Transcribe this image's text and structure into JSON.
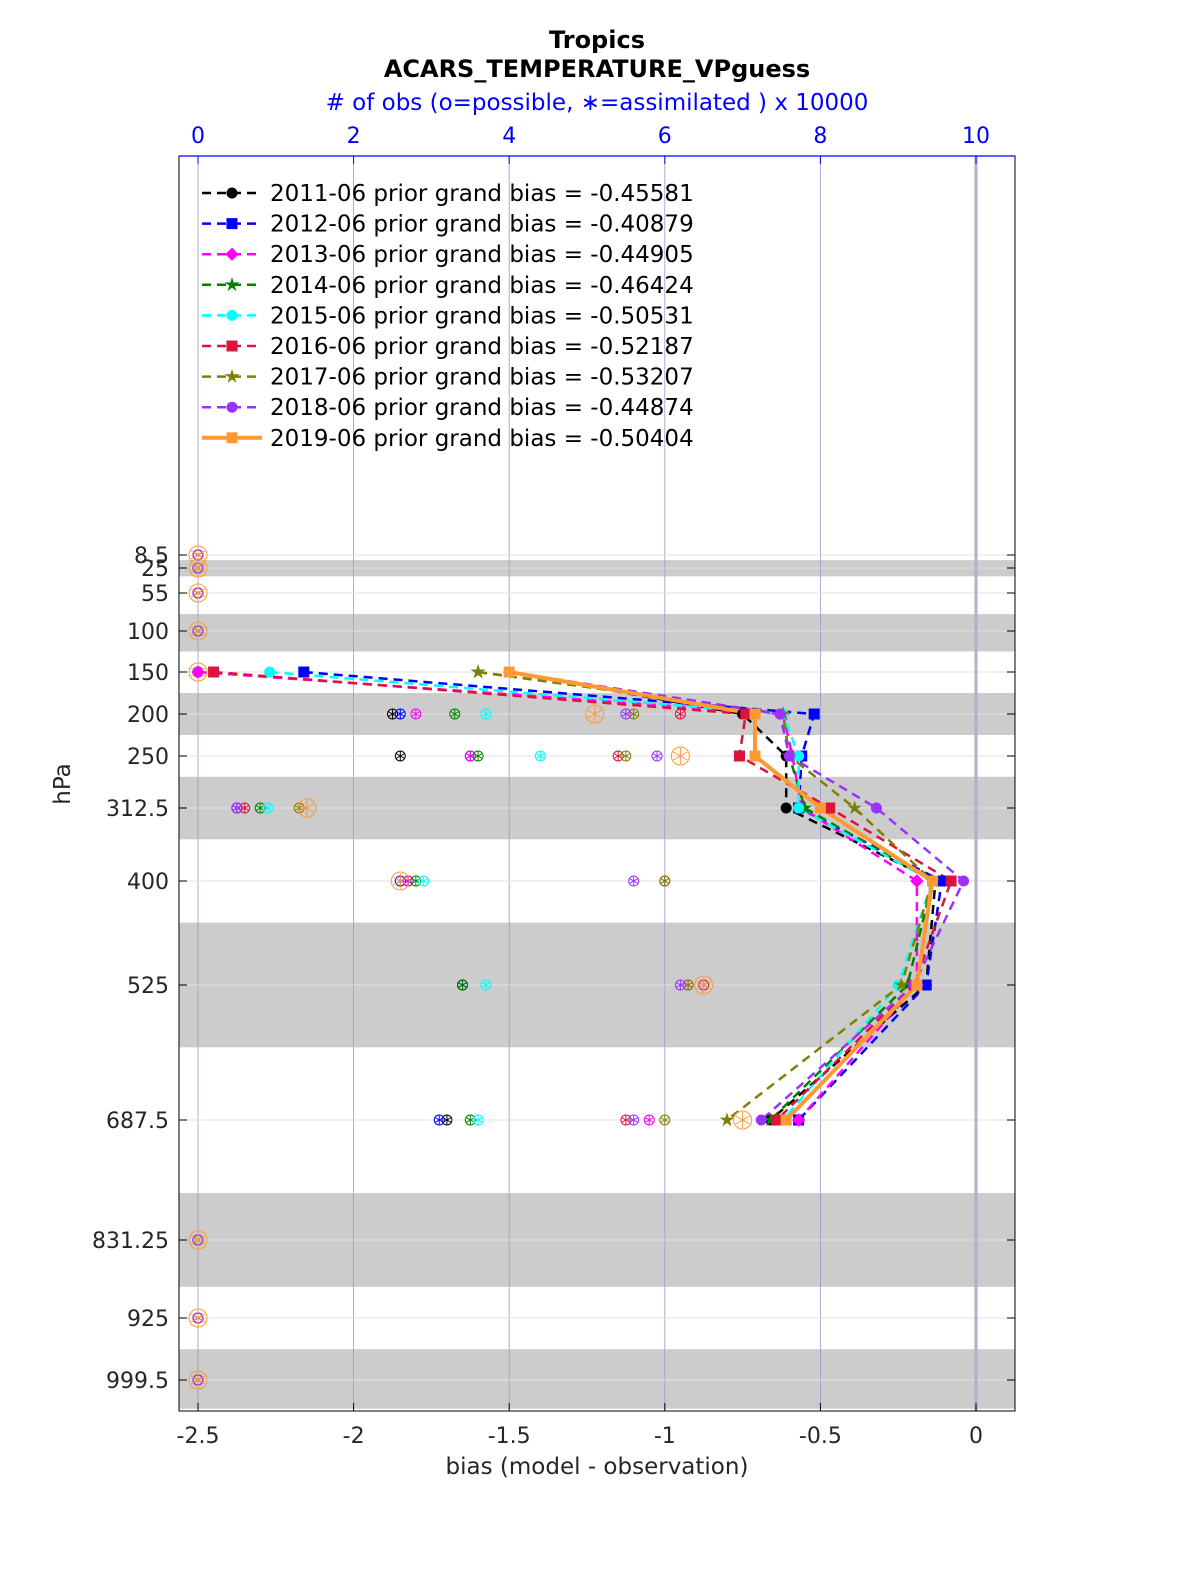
{
  "chart_data": {
    "type": "line",
    "title": "Tropics",
    "subtitle": "ACARS_TEMPERATURE_VPguess",
    "top_axis_label": "# of obs (o=possible, ∗=assimilated ) x 10000",
    "xlabel": "bias (model - observation)",
    "ylabel": "hPa",
    "xlim": [
      -2.5,
      0.12
    ],
    "x_ticks": [
      "-2.5",
      "-2",
      "-1.5",
      "-1",
      "-0.5",
      "0"
    ],
    "x_tick_values": [
      -2.5,
      -2,
      -1.5,
      -1,
      -0.5,
      0
    ],
    "top_xlim": [
      0,
      10.5
    ],
    "top_ticks": [
      "0",
      "2",
      "4",
      "6",
      "8",
      "10"
    ],
    "top_tick_values": [
      0,
      2,
      4,
      6,
      8,
      10
    ],
    "y_ticks": [
      "8.5",
      "25",
      "55",
      "100",
      "150",
      "200",
      "250",
      "312.5",
      "400",
      "525",
      "687.5",
      "831.25",
      "925",
      "999.5"
    ],
    "y_tick_values": [
      8.5,
      25,
      55,
      100,
      150,
      200,
      250,
      312.5,
      400,
      525,
      687.5,
      831.25,
      925,
      999.5
    ],
    "y_reversed": true,
    "shaded_bands": [
      [
        15,
        35
      ],
      [
        80,
        125
      ],
      [
        175,
        225
      ],
      [
        275,
        350
      ],
      [
        450,
        600
      ],
      [
        775,
        887.5
      ],
      [
        962.5,
        1037
      ]
    ],
    "legend_position": "top-left",
    "series": [
      {
        "name": "2011-06 prior grand bias = -0.45581",
        "color": "#000000",
        "marker": "circle",
        "style": "dashed",
        "pressure": [
          150,
          200,
          250,
          312.5,
          400,
          525,
          687.5
        ],
        "values": [
          -1.5,
          -0.75,
          -0.61,
          -0.61,
          -0.13,
          -0.16,
          -0.66
        ]
      },
      {
        "name": "2012-06 prior grand bias = -0.40879",
        "color": "#0000ff",
        "marker": "square",
        "style": "dashed",
        "pressure": [
          150,
          200,
          250,
          312.5,
          400,
          525,
          687.5
        ],
        "values": [
          -2.16,
          -0.52,
          -0.56,
          -0.57,
          -0.11,
          -0.16,
          -0.57
        ]
      },
      {
        "name": "2013-06 prior grand bias = -0.44905",
        "color": "#ff00ff",
        "marker": "diamond",
        "style": "dashed",
        "pressure": [
          150,
          200,
          250,
          312.5,
          400,
          525,
          687.5
        ],
        "values": [
          -2.5,
          -0.62,
          -0.59,
          -0.56,
          -0.19,
          -0.19,
          -0.57
        ]
      },
      {
        "name": "2014-06 prior grand bias = -0.46424",
        "color": "#008000",
        "marker": "star",
        "style": "dashed",
        "pressure": [
          150,
          200,
          250,
          312.5,
          400,
          525,
          687.5
        ],
        "values": [
          -1.6,
          -0.62,
          -0.6,
          -0.55,
          -0.14,
          -0.22,
          -0.66
        ]
      },
      {
        "name": "2015-06 prior grand bias = -0.50531",
        "color": "#00ffff",
        "marker": "hexagon",
        "style": "dashed",
        "pressure": [
          150,
          200,
          250,
          312.5,
          400,
          525,
          687.5
        ],
        "values": [
          -2.27,
          -0.62,
          -0.57,
          -0.57,
          -0.14,
          -0.25,
          -0.62
        ]
      },
      {
        "name": "2016-06 prior grand bias = -0.52187",
        "color": "#dc143c",
        "marker": "square",
        "style": "dashed",
        "pressure": [
          150,
          200,
          250,
          312.5,
          400,
          525,
          687.5
        ],
        "values": [
          -2.45,
          -0.74,
          -0.76,
          -0.47,
          -0.08,
          -0.2,
          -0.64
        ]
      },
      {
        "name": "2017-06 prior grand bias = -0.53207",
        "color": "#808000",
        "marker": "star",
        "style": "dashed",
        "pressure": [
          150,
          200,
          250,
          312.5,
          400,
          525,
          687.5
        ],
        "values": [
          -1.6,
          -0.62,
          -0.6,
          -0.39,
          -0.14,
          -0.24,
          -0.8
        ]
      },
      {
        "name": "2018-06 prior grand bias = -0.44874",
        "color": "#9b30ff",
        "marker": "circle",
        "style": "dashed",
        "pressure": [
          150,
          200,
          250,
          312.5,
          400,
          525,
          687.5
        ],
        "values": [
          -1.5,
          -0.63,
          -0.6,
          -0.32,
          -0.04,
          -0.2,
          -0.69
        ]
      },
      {
        "name": "2019-06 prior grand bias = -0.50404",
        "color": "#ff9933",
        "marker": "square",
        "style": "solid",
        "pressure": [
          150,
          200,
          250,
          312.5,
          400,
          525,
          687.5
        ],
        "values": [
          -1.5,
          -0.71,
          -0.71,
          -0.5,
          -0.14,
          -0.19,
          -0.61
        ]
      }
    ],
    "obs_counts": {
      "pressure": [
        8.5,
        25,
        55,
        100,
        150,
        200,
        250,
        312.5,
        400,
        525,
        687.5,
        831.25,
        925,
        999.5
      ],
      "per_year": [
        {
          "color": "#000000",
          "counts": [
            0,
            0,
            0,
            0,
            0,
            2.5,
            2.6,
            0.5,
            2.7,
            3.4,
            3.2,
            0,
            0,
            0
          ]
        },
        {
          "color": "#0000ff",
          "counts": [
            0,
            0,
            0,
            0,
            0,
            2.6,
            3.5,
            0.5,
            2.6,
            3.4,
            3.1,
            0,
            0,
            0
          ]
        },
        {
          "color": "#ff00ff",
          "counts": [
            0,
            0,
            0,
            0,
            0,
            2.8,
            3.5,
            0.5,
            2.7,
            6.3,
            5.8,
            0,
            0,
            0
          ]
        },
        {
          "color": "#008000",
          "counts": [
            0,
            0,
            0,
            0,
            0,
            3.3,
            3.6,
            0.8,
            2.8,
            3.4,
            3.5,
            0,
            0,
            0
          ]
        },
        {
          "color": "#00ffff",
          "counts": [
            0,
            0,
            0,
            0,
            0,
            3.7,
            4.4,
            0.9,
            2.9,
            3.7,
            3.6,
            0,
            0,
            0
          ]
        },
        {
          "color": "#dc143c",
          "counts": [
            0,
            0,
            0,
            0,
            0,
            6.2,
            5.4,
            0.6,
            6.0,
            6.5,
            5.5,
            0,
            0,
            0
          ]
        },
        {
          "color": "#808000",
          "counts": [
            0,
            0,
            0,
            0,
            0,
            5.6,
            5.5,
            1.3,
            6.0,
            6.3,
            6.0,
            0,
            0,
            0
          ]
        },
        {
          "color": "#9b30ff",
          "counts": [
            0,
            0,
            0,
            0,
            0,
            5.5,
            5.9,
            0.5,
            5.6,
            6.2,
            5.6,
            0,
            0,
            0
          ]
        },
        {
          "color": "#ff9933",
          "counts": [
            0,
            0,
            0,
            0,
            0,
            5.1,
            6.2,
            1.4,
            2.6,
            6.5,
            7.0,
            0,
            0,
            0
          ]
        }
      ]
    }
  }
}
